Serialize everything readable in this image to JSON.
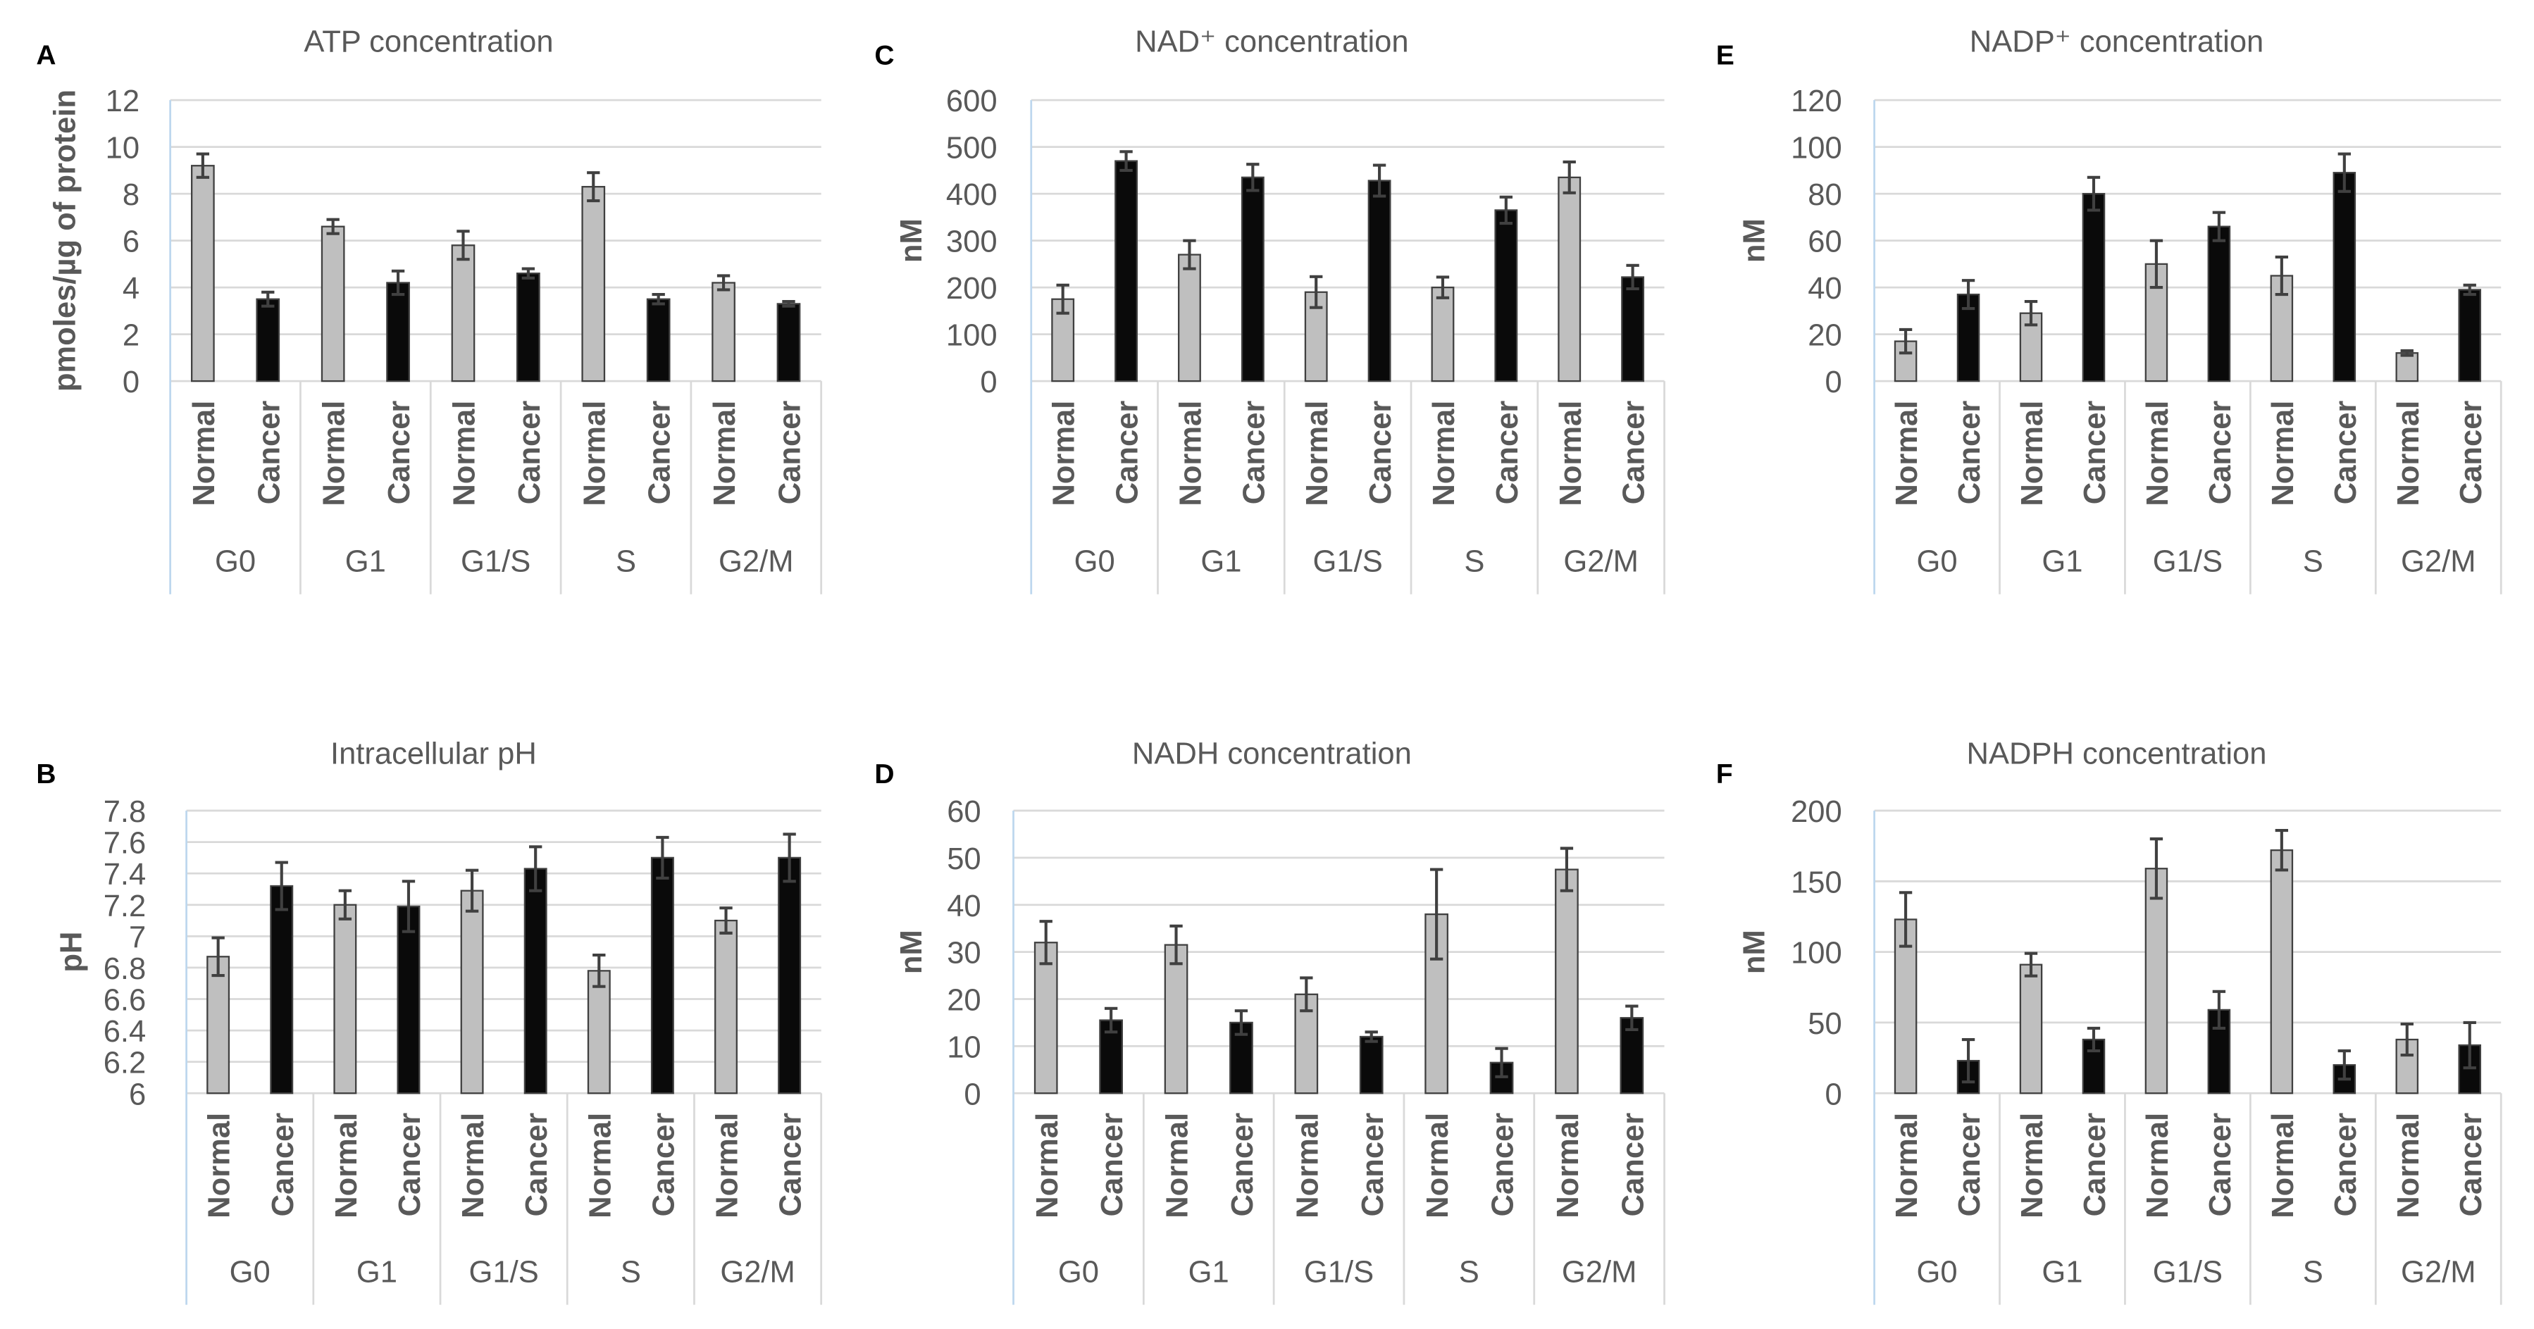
{
  "chart_data": [
    {
      "panel": "A",
      "type": "bar",
      "title": "ATP concentration",
      "xlabel": "",
      "ylabel": "pmoles/µg of protein",
      "ylim": [
        0,
        12
      ],
      "yticks": [
        "0",
        "2",
        "4",
        "6",
        "8",
        "10",
        "12"
      ],
      "ytick_values": [
        0,
        2,
        4,
        6,
        8,
        10,
        12
      ],
      "grid": true,
      "groups": [
        "G0",
        "G1",
        "G1/S",
        "S",
        "G2/M"
      ],
      "series": [
        {
          "name": "Normal",
          "color": "#bfbfbf",
          "values": [
            9.2,
            6.6,
            5.8,
            8.3,
            4.2
          ],
          "errors": [
            0.5,
            0.3,
            0.6,
            0.6,
            0.3
          ]
        },
        {
          "name": "Cancer",
          "color": "#0a0a0a",
          "values": [
            3.5,
            4.2,
            4.6,
            3.5,
            3.3
          ],
          "errors": [
            0.3,
            0.5,
            0.2,
            0.2,
            0.1
          ]
        }
      ]
    },
    {
      "panel": "B",
      "type": "bar",
      "title": "Intracellular pH",
      "xlabel": "",
      "ylabel": "pH",
      "ylim": [
        6,
        7.8
      ],
      "yticks": [
        "6",
        "6.2",
        "6.4",
        "6.6",
        "6.8",
        "7",
        "7.2",
        "7.4",
        "7.6",
        "7.8"
      ],
      "ytick_values": [
        6,
        6.2,
        6.4,
        6.6,
        6.8,
        7,
        7.2,
        7.4,
        7.6,
        7.8
      ],
      "grid": true,
      "groups": [
        "G0",
        "G1",
        "G1/S",
        "S",
        "G2/M"
      ],
      "series": [
        {
          "name": "Normal",
          "color": "#bfbfbf",
          "values": [
            6.87,
            7.2,
            7.29,
            6.78,
            7.1
          ],
          "errors": [
            0.12,
            0.09,
            0.13,
            0.1,
            0.08
          ]
        },
        {
          "name": "Cancer",
          "color": "#0a0a0a",
          "values": [
            7.32,
            7.19,
            7.43,
            7.5,
            7.5
          ],
          "errors": [
            0.15,
            0.16,
            0.14,
            0.13,
            0.15
          ]
        }
      ]
    },
    {
      "panel": "C",
      "type": "bar",
      "title": "NAD⁺ concentration",
      "xlabel": "",
      "ylabel": "nM",
      "ylim": [
        0,
        600
      ],
      "yticks": [
        "0",
        "100",
        "200",
        "300",
        "400",
        "500",
        "600"
      ],
      "ytick_values": [
        0,
        100,
        200,
        300,
        400,
        500,
        600
      ],
      "grid": true,
      "groups": [
        "G0",
        "G1",
        "G1/S",
        "S",
        "G2/M"
      ],
      "series": [
        {
          "name": "Normal",
          "color": "#bfbfbf",
          "values": [
            175,
            270,
            190,
            200,
            435
          ],
          "errors": [
            30,
            30,
            33,
            22,
            33
          ]
        },
        {
          "name": "Cancer",
          "color": "#0a0a0a",
          "values": [
            470,
            435,
            428,
            365,
            222
          ],
          "errors": [
            20,
            28,
            33,
            28,
            25
          ]
        }
      ]
    },
    {
      "panel": "D",
      "type": "bar",
      "title": "NADH concentration",
      "xlabel": "",
      "ylabel": "nM",
      "ylim": [
        0,
        60
      ],
      "yticks": [
        "0",
        "10",
        "20",
        "30",
        "40",
        "50",
        "60"
      ],
      "ytick_values": [
        0,
        10,
        20,
        30,
        40,
        50,
        60
      ],
      "grid": true,
      "groups": [
        "G0",
        "G1",
        "G1/S",
        "S",
        "G2/M"
      ],
      "series": [
        {
          "name": "Normal",
          "color": "#bfbfbf",
          "values": [
            32,
            31.5,
            21,
            38,
            47.5
          ],
          "errors": [
            4.5,
            4,
            3.5,
            9.5,
            4.5
          ]
        },
        {
          "name": "Cancer",
          "color": "#0a0a0a",
          "values": [
            15.5,
            15,
            12,
            6.5,
            16
          ],
          "errors": [
            2.5,
            2.5,
            1,
            3,
            2.5
          ]
        }
      ]
    },
    {
      "panel": "E",
      "type": "bar",
      "title": "NADP⁺ concentration",
      "xlabel": "",
      "ylabel": "nM",
      "ylim": [
        0,
        120
      ],
      "yticks": [
        "0",
        "20",
        "40",
        "60",
        "80",
        "100",
        "120"
      ],
      "ytick_values": [
        0,
        20,
        40,
        60,
        80,
        100,
        120
      ],
      "grid": true,
      "groups": [
        "G0",
        "G1",
        "G1/S",
        "S",
        "G2/M"
      ],
      "series": [
        {
          "name": "Normal",
          "color": "#bfbfbf",
          "values": [
            17,
            29,
            50,
            45,
            12
          ],
          "errors": [
            5,
            5,
            10,
            8,
            1
          ]
        },
        {
          "name": "Cancer",
          "color": "#0a0a0a",
          "values": [
            37,
            80,
            66,
            89,
            39
          ],
          "errors": [
            6,
            7,
            6,
            8,
            2
          ]
        }
      ]
    },
    {
      "panel": "F",
      "type": "bar",
      "title": "NADPH concentration",
      "xlabel": "",
      "ylabel": "nM",
      "ylim": [
        0,
        200
      ],
      "yticks": [
        "0",
        "50",
        "100",
        "150",
        "200"
      ],
      "ytick_values": [
        0,
        50,
        100,
        150,
        200
      ],
      "grid": true,
      "groups": [
        "G0",
        "G1",
        "G1/S",
        "S",
        "G2/M"
      ],
      "series": [
        {
          "name": "Normal",
          "color": "#bfbfbf",
          "values": [
            123,
            91,
            159,
            172,
            38
          ],
          "errors": [
            19,
            8,
            21,
            14,
            11
          ]
        },
        {
          "name": "Cancer",
          "color": "#0a0a0a",
          "values": [
            23,
            38,
            59,
            20,
            34
          ],
          "errors": [
            15,
            8,
            13,
            10,
            16
          ]
        }
      ]
    }
  ]
}
